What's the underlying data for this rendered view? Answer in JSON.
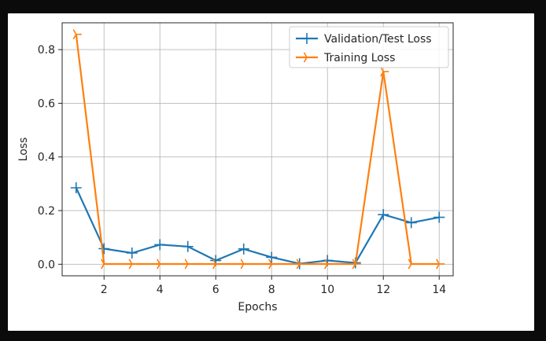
{
  "chart_data": {
    "type": "line",
    "title": "",
    "xlabel": "Epochs",
    "ylabel": "Loss",
    "xlim": [
      0.5,
      14.5
    ],
    "ylim": [
      -0.043,
      0.9
    ],
    "xticks": [
      2,
      4,
      6,
      8,
      10,
      12,
      14
    ],
    "yticks": [
      0.0,
      0.2,
      0.4,
      0.6,
      0.8
    ],
    "ytick_labels": [
      "0.0",
      "0.2",
      "0.4",
      "0.6",
      "0.8"
    ],
    "grid": true,
    "legend_position": "top-right",
    "x": [
      1,
      2,
      3,
      4,
      5,
      6,
      7,
      8,
      9,
      10,
      11,
      12,
      13,
      14
    ],
    "series": [
      {
        "name": "Validation/Test Loss",
        "color": "#1f77b4",
        "marker": "plus",
        "values": [
          0.285,
          0.058,
          0.042,
          0.073,
          0.066,
          0.014,
          0.057,
          0.026,
          0.002,
          0.014,
          0.005,
          0.185,
          0.155,
          0.175
        ]
      },
      {
        "name": "Training Loss",
        "color": "#ff7f0e",
        "marker": "tri_right",
        "values": [
          0.857,
          0.001,
          0.001,
          0.001,
          0.001,
          0.001,
          0.001,
          0.001,
          0.001,
          0.001,
          0.001,
          0.718,
          0.001,
          0.001
        ]
      }
    ]
  }
}
